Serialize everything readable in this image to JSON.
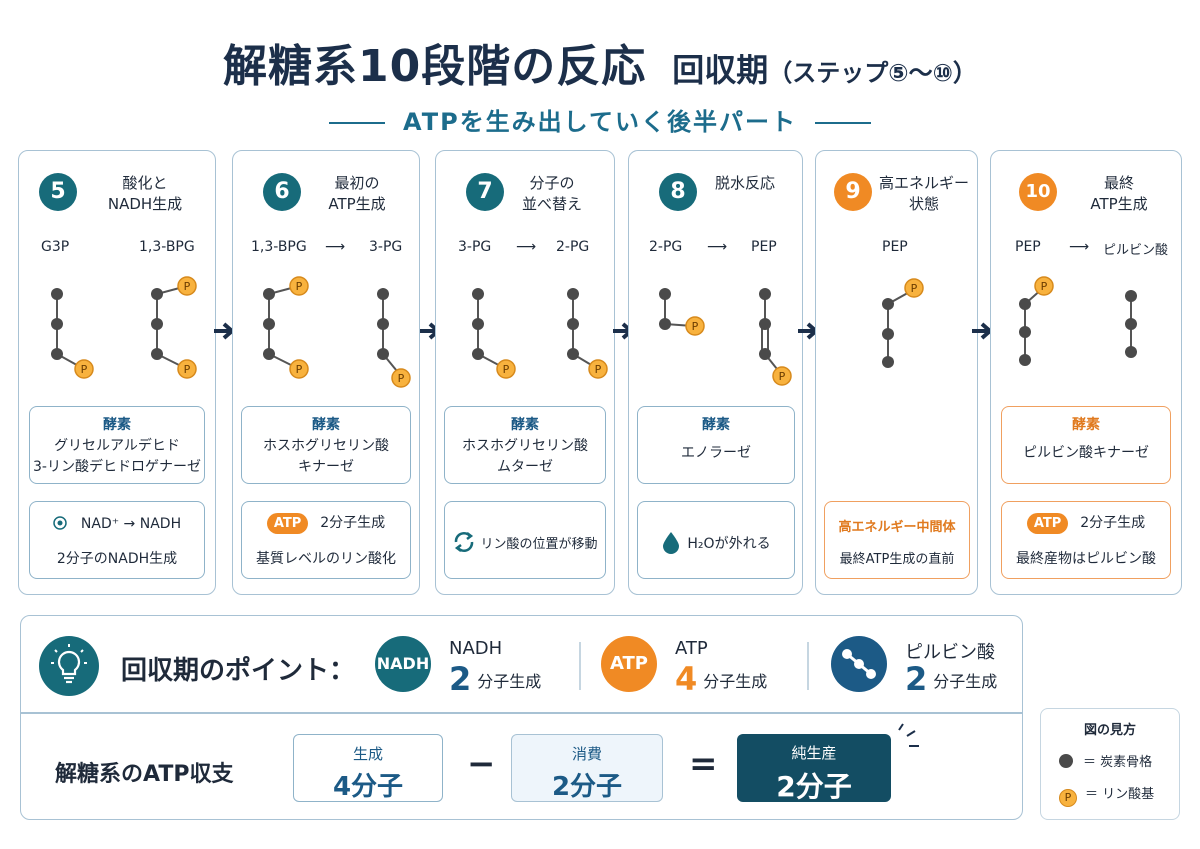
{
  "title": {
    "main": "解糖系10段階の反応",
    "sub": "回収期",
    "range": "（ステップ⑤～⑩）"
  },
  "subtitle": "ATPを生み出していく後半パート",
  "steps": [
    {
      "num": "5",
      "title": "酸化と\nNADH生成",
      "from": "G3P",
      "to": "1,3-BPG",
      "arrow_text": "",
      "enzyme_label": "酵素",
      "enzyme": "グリセルアルデヒド\n3-リン酸デヒドロゲナーゼ",
      "note_r1": "NAD⁺ → NADH",
      "note_r2": "2分子のNADH生成"
    },
    {
      "num": "6",
      "title": "最初の\nATP生成",
      "from": "1,3-BPG",
      "to": "3-PG",
      "arrow_text": "⟶",
      "enzyme_label": "酵素",
      "enzyme": "ホスホグリセリン酸\nキナーゼ",
      "note_pill": "ATP",
      "note_r1": "2分子生成",
      "note_r2": "基質レベルのリン酸化"
    },
    {
      "num": "7",
      "title": "分子の\n並べ替え",
      "from": "3-PG",
      "to": "2-PG",
      "arrow_text": "⟶",
      "enzyme_label": "酵素",
      "enzyme": "ホスホグリセリン酸\nムターゼ",
      "note_single": "リン酸の位置が移動"
    },
    {
      "num": "8",
      "title": "脱水反応",
      "from": "2-PG",
      "to": "PEP",
      "arrow_text": "⟶",
      "enzyme_label": "酵素",
      "enzyme": "エノラーゼ",
      "note_single": "H₂Oが外れる"
    },
    {
      "num": "9",
      "title": "高エネルギー\n状態",
      "from": "PEP",
      "to": "",
      "arrow_text": "",
      "note_r1": "高エネルギー中間体",
      "note_r2": "最終ATP生成の直前"
    },
    {
      "num": "10",
      "title": "最終\nATP生成",
      "from": "PEP",
      "to": "ピルビン酸",
      "arrow_text": "⟶",
      "enzyme_label": "酵素",
      "enzyme": "ピルビン酸キナーゼ",
      "note_pill": "ATP",
      "note_r1": "2分子生成",
      "note_r2": "最終産物はピルビン酸"
    }
  ],
  "points": {
    "title": "回収期のポイント：",
    "items": [
      {
        "icon_text": "NADH",
        "name": "NADH",
        "num": "2",
        "unit": "分子生成"
      },
      {
        "icon_text": "ATP",
        "name": "ATP",
        "num": "4",
        "unit": "分子生成"
      },
      {
        "icon_text": "",
        "name": "ピルビン酸",
        "num": "2",
        "unit": "分子生成"
      }
    ]
  },
  "balance": {
    "title": "解糖系のATP収支",
    "produced_label": "生成",
    "produced_value": "4分子",
    "minus": "−",
    "consumed_label": "消費",
    "consumed_value": "2分子",
    "equals": "=",
    "net_label": "純生産",
    "net_value": "2分子"
  },
  "legend": {
    "title": "図の見方",
    "carbon": "＝ 炭素骨格",
    "phosphate_symbol": "P",
    "phosphate": "＝ リン酸基"
  },
  "colors": {
    "teal": "#176b7a",
    "orange": "#f08a24",
    "navy": "#1c2f4a",
    "blue": "#1c5a86"
  }
}
